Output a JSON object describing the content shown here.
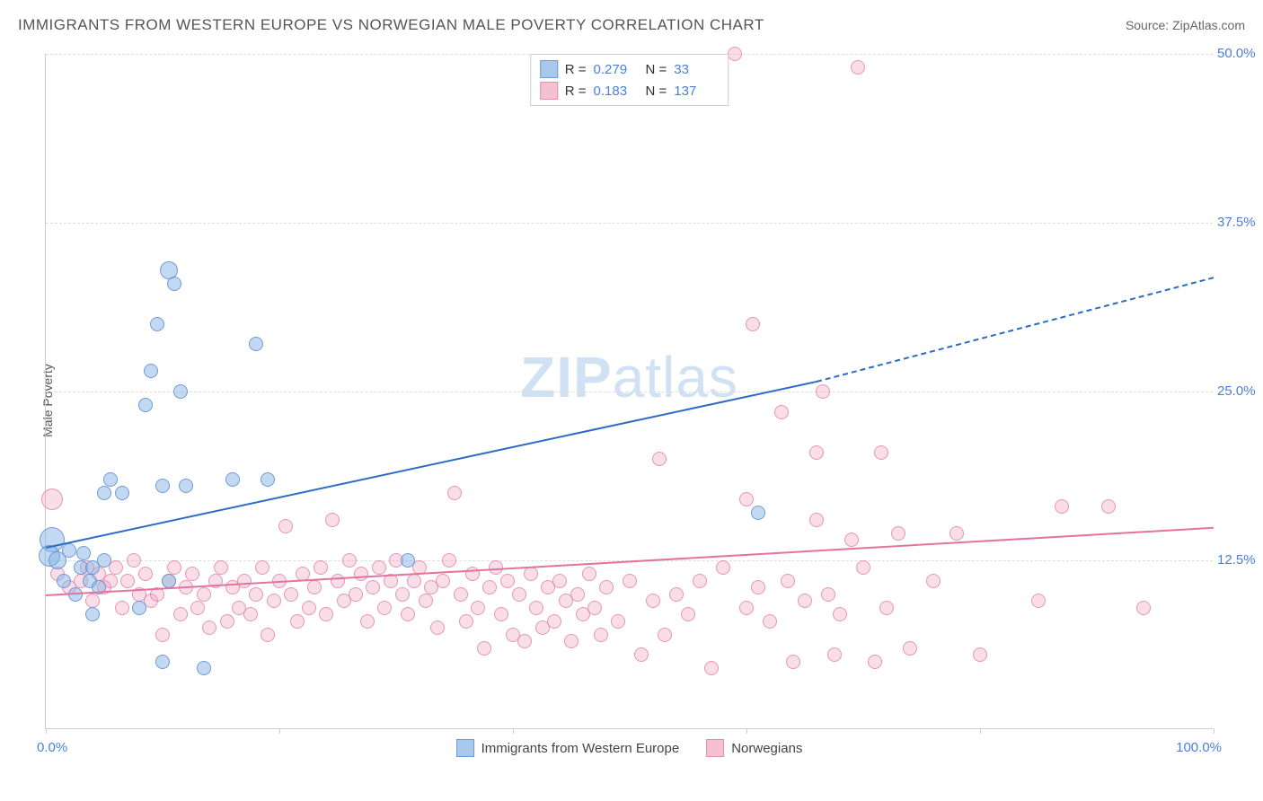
{
  "title": "IMMIGRANTS FROM WESTERN EUROPE VS NORWEGIAN MALE POVERTY CORRELATION CHART",
  "source": "Source: ZipAtlas.com",
  "watermark_bold": "ZIP",
  "watermark_light": "atlas",
  "ylabel": "Male Poverty",
  "chart": {
    "type": "scatter",
    "xlim": [
      0,
      100
    ],
    "ylim": [
      0,
      50
    ],
    "xmin_label": "0.0%",
    "xmax_label": "100.0%",
    "xtick_positions": [
      0,
      20,
      40,
      60,
      80,
      100
    ],
    "yticks": [
      {
        "v": 12.5,
        "label": "12.5%"
      },
      {
        "v": 25.0,
        "label": "25.0%"
      },
      {
        "v": 37.5,
        "label": "37.5%"
      },
      {
        "v": 50.0,
        "label": "50.0%"
      }
    ],
    "grid_color": "#dddddd",
    "axis_color": "#cccccc",
    "background_color": "#ffffff",
    "series": [
      {
        "name": "Immigrants from Western Europe",
        "color_fill": "rgba(135,180,230,0.5)",
        "color_stroke": "#5a8cd2",
        "swatch_fill": "#a8c8ec",
        "swatch_border": "#6b9bd8",
        "marker_radius": 8,
        "R": "0.279",
        "N": "33",
        "trend": {
          "x1": 0,
          "y1": 13.5,
          "x2_solid": 66,
          "y2_solid": 25.8,
          "x2": 100,
          "y2": 33.5,
          "color": "#2d6bc4",
          "width": 2
        },
        "points": [
          {
            "x": 0.5,
            "y": 14.0,
            "r": 14
          },
          {
            "x": 0.3,
            "y": 12.8,
            "r": 12
          },
          {
            "x": 1.0,
            "y": 12.5,
            "r": 10
          },
          {
            "x": 1.5,
            "y": 11.0,
            "r": 8
          },
          {
            "x": 2.0,
            "y": 13.2,
            "r": 8
          },
          {
            "x": 2.5,
            "y": 10.0,
            "r": 8
          },
          {
            "x": 3.0,
            "y": 12.0,
            "r": 8
          },
          {
            "x": 3.2,
            "y": 13.0,
            "r": 8
          },
          {
            "x": 3.8,
            "y": 11.0,
            "r": 8
          },
          {
            "x": 4.0,
            "y": 8.5,
            "r": 8
          },
          {
            "x": 4.0,
            "y": 12.0,
            "r": 8
          },
          {
            "x": 4.5,
            "y": 10.5,
            "r": 8
          },
          {
            "x": 5.0,
            "y": 12.5,
            "r": 8
          },
          {
            "x": 5.0,
            "y": 17.5,
            "r": 8
          },
          {
            "x": 5.5,
            "y": 18.5,
            "r": 8
          },
          {
            "x": 6.5,
            "y": 17.5,
            "r": 8
          },
          {
            "x": 8.0,
            "y": 9.0,
            "r": 8
          },
          {
            "x": 8.5,
            "y": 24.0,
            "r": 8
          },
          {
            "x": 9.0,
            "y": 26.5,
            "r": 8
          },
          {
            "x": 9.5,
            "y": 30.0,
            "r": 8
          },
          {
            "x": 10.0,
            "y": 5.0,
            "r": 8
          },
          {
            "x": 10.0,
            "y": 18.0,
            "r": 8
          },
          {
            "x": 10.5,
            "y": 11.0,
            "r": 8
          },
          {
            "x": 10.5,
            "y": 34.0,
            "r": 10
          },
          {
            "x": 11.0,
            "y": 33.0,
            "r": 8
          },
          {
            "x": 11.5,
            "y": 25.0,
            "r": 8
          },
          {
            "x": 12.0,
            "y": 18.0,
            "r": 8
          },
          {
            "x": 13.5,
            "y": 4.5,
            "r": 8
          },
          {
            "x": 16.0,
            "y": 18.5,
            "r": 8
          },
          {
            "x": 18.0,
            "y": 28.5,
            "r": 8
          },
          {
            "x": 19.0,
            "y": 18.5,
            "r": 8
          },
          {
            "x": 31.0,
            "y": 12.5,
            "r": 8
          },
          {
            "x": 61.0,
            "y": 16.0,
            "r": 8
          }
        ]
      },
      {
        "name": "Norwegians",
        "color_fill": "rgba(240,160,185,0.35)",
        "color_stroke": "#dc78a0",
        "swatch_fill": "#f5c0d2",
        "swatch_border": "#e28fb0",
        "marker_radius": 8,
        "R": "0.183",
        "N": "137",
        "trend": {
          "x1": 0,
          "y1": 10.0,
          "x2_solid": 100,
          "y2_solid": 15.0,
          "x2": 100,
          "y2": 15.0,
          "color": "#e472a0",
          "width": 2
        },
        "points": [
          {
            "x": 0.5,
            "y": 17.0,
            "r": 12
          },
          {
            "x": 1.0,
            "y": 11.5,
            "r": 8
          },
          {
            "x": 2.0,
            "y": 10.5,
            "r": 8
          },
          {
            "x": 3.0,
            "y": 11.0,
            "r": 8
          },
          {
            "x": 3.5,
            "y": 12.0,
            "r": 8
          },
          {
            "x": 4.0,
            "y": 9.5,
            "r": 8
          },
          {
            "x": 4.5,
            "y": 11.5,
            "r": 8
          },
          {
            "x": 5.0,
            "y": 10.5,
            "r": 8
          },
          {
            "x": 5.5,
            "y": 11.0,
            "r": 8
          },
          {
            "x": 6.0,
            "y": 12.0,
            "r": 8
          },
          {
            "x": 6.5,
            "y": 9.0,
            "r": 8
          },
          {
            "x": 7.0,
            "y": 11.0,
            "r": 8
          },
          {
            "x": 7.5,
            "y": 12.5,
            "r": 8
          },
          {
            "x": 8.0,
            "y": 10.0,
            "r": 8
          },
          {
            "x": 8.5,
            "y": 11.5,
            "r": 8
          },
          {
            "x": 9.0,
            "y": 9.5,
            "r": 8
          },
          {
            "x": 9.5,
            "y": 10.0,
            "r": 8
          },
          {
            "x": 10.0,
            "y": 7.0,
            "r": 8
          },
          {
            "x": 10.5,
            "y": 11.0,
            "r": 8
          },
          {
            "x": 11.0,
            "y": 12.0,
            "r": 8
          },
          {
            "x": 11.5,
            "y": 8.5,
            "r": 8
          },
          {
            "x": 12.0,
            "y": 10.5,
            "r": 8
          },
          {
            "x": 12.5,
            "y": 11.5,
            "r": 8
          },
          {
            "x": 13.0,
            "y": 9.0,
            "r": 8
          },
          {
            "x": 13.5,
            "y": 10.0,
            "r": 8
          },
          {
            "x": 14.0,
            "y": 7.5,
            "r": 8
          },
          {
            "x": 14.5,
            "y": 11.0,
            "r": 8
          },
          {
            "x": 15.0,
            "y": 12.0,
            "r": 8
          },
          {
            "x": 15.5,
            "y": 8.0,
            "r": 8
          },
          {
            "x": 16.0,
            "y": 10.5,
            "r": 8
          },
          {
            "x": 16.5,
            "y": 9.0,
            "r": 8
          },
          {
            "x": 17.0,
            "y": 11.0,
            "r": 8
          },
          {
            "x": 17.5,
            "y": 8.5,
            "r": 8
          },
          {
            "x": 18.0,
            "y": 10.0,
            "r": 8
          },
          {
            "x": 18.5,
            "y": 12.0,
            "r": 8
          },
          {
            "x": 19.0,
            "y": 7.0,
            "r": 8
          },
          {
            "x": 19.5,
            "y": 9.5,
            "r": 8
          },
          {
            "x": 20.0,
            "y": 11.0,
            "r": 8
          },
          {
            "x": 20.5,
            "y": 15.0,
            "r": 8
          },
          {
            "x": 21.0,
            "y": 10.0,
            "r": 8
          },
          {
            "x": 21.5,
            "y": 8.0,
            "r": 8
          },
          {
            "x": 22.0,
            "y": 11.5,
            "r": 8
          },
          {
            "x": 22.5,
            "y": 9.0,
            "r": 8
          },
          {
            "x": 23.0,
            "y": 10.5,
            "r": 8
          },
          {
            "x": 23.5,
            "y": 12.0,
            "r": 8
          },
          {
            "x": 24.0,
            "y": 8.5,
            "r": 8
          },
          {
            "x": 24.5,
            "y": 15.5,
            "r": 8
          },
          {
            "x": 25.0,
            "y": 11.0,
            "r": 8
          },
          {
            "x": 25.5,
            "y": 9.5,
            "r": 8
          },
          {
            "x": 26.0,
            "y": 12.5,
            "r": 8
          },
          {
            "x": 26.5,
            "y": 10.0,
            "r": 8
          },
          {
            "x": 27.0,
            "y": 11.5,
            "r": 8
          },
          {
            "x": 27.5,
            "y": 8.0,
            "r": 8
          },
          {
            "x": 28.0,
            "y": 10.5,
            "r": 8
          },
          {
            "x": 28.5,
            "y": 12.0,
            "r": 8
          },
          {
            "x": 29.0,
            "y": 9.0,
            "r": 8
          },
          {
            "x": 29.5,
            "y": 11.0,
            "r": 8
          },
          {
            "x": 30.0,
            "y": 12.5,
            "r": 8
          },
          {
            "x": 30.5,
            "y": 10.0,
            "r": 8
          },
          {
            "x": 31.0,
            "y": 8.5,
            "r": 8
          },
          {
            "x": 31.5,
            "y": 11.0,
            "r": 8
          },
          {
            "x": 32.0,
            "y": 12.0,
            "r": 8
          },
          {
            "x": 32.5,
            "y": 9.5,
            "r": 8
          },
          {
            "x": 33.0,
            "y": 10.5,
            "r": 8
          },
          {
            "x": 33.5,
            "y": 7.5,
            "r": 8
          },
          {
            "x": 34.0,
            "y": 11.0,
            "r": 8
          },
          {
            "x": 34.5,
            "y": 12.5,
            "r": 8
          },
          {
            "x": 35.0,
            "y": 17.5,
            "r": 8
          },
          {
            "x": 35.5,
            "y": 10.0,
            "r": 8
          },
          {
            "x": 36.0,
            "y": 8.0,
            "r": 8
          },
          {
            "x": 36.5,
            "y": 11.5,
            "r": 8
          },
          {
            "x": 37.0,
            "y": 9.0,
            "r": 8
          },
          {
            "x": 37.5,
            "y": 6.0,
            "r": 8
          },
          {
            "x": 38.0,
            "y": 10.5,
            "r": 8
          },
          {
            "x": 38.5,
            "y": 12.0,
            "r": 8
          },
          {
            "x": 39.0,
            "y": 8.5,
            "r": 8
          },
          {
            "x": 39.5,
            "y": 11.0,
            "r": 8
          },
          {
            "x": 40.0,
            "y": 7.0,
            "r": 8
          },
          {
            "x": 40.5,
            "y": 10.0,
            "r": 8
          },
          {
            "x": 41.0,
            "y": 6.5,
            "r": 8
          },
          {
            "x": 41.5,
            "y": 11.5,
            "r": 8
          },
          {
            "x": 42.0,
            "y": 9.0,
            "r": 8
          },
          {
            "x": 42.5,
            "y": 7.5,
            "r": 8
          },
          {
            "x": 43.0,
            "y": 10.5,
            "r": 8
          },
          {
            "x": 43.5,
            "y": 8.0,
            "r": 8
          },
          {
            "x": 44.0,
            "y": 11.0,
            "r": 8
          },
          {
            "x": 44.5,
            "y": 9.5,
            "r": 8
          },
          {
            "x": 45.0,
            "y": 6.5,
            "r": 8
          },
          {
            "x": 45.5,
            "y": 10.0,
            "r": 8
          },
          {
            "x": 46.0,
            "y": 8.5,
            "r": 8
          },
          {
            "x": 46.5,
            "y": 11.5,
            "r": 8
          },
          {
            "x": 47.0,
            "y": 9.0,
            "r": 8
          },
          {
            "x": 47.5,
            "y": 7.0,
            "r": 8
          },
          {
            "x": 48.0,
            "y": 10.5,
            "r": 8
          },
          {
            "x": 49.0,
            "y": 8.0,
            "r": 8
          },
          {
            "x": 50.0,
            "y": 11.0,
            "r": 8
          },
          {
            "x": 51.0,
            "y": 5.5,
            "r": 8
          },
          {
            "x": 52.0,
            "y": 9.5,
            "r": 8
          },
          {
            "x": 52.5,
            "y": 20.0,
            "r": 8
          },
          {
            "x": 53.0,
            "y": 7.0,
            "r": 8
          },
          {
            "x": 54.0,
            "y": 10.0,
            "r": 8
          },
          {
            "x": 55.0,
            "y": 8.5,
            "r": 8
          },
          {
            "x": 56.0,
            "y": 11.0,
            "r": 8
          },
          {
            "x": 57.0,
            "y": 4.5,
            "r": 8
          },
          {
            "x": 58.0,
            "y": 12.0,
            "r": 8
          },
          {
            "x": 59.0,
            "y": 51.0,
            "r": 8
          },
          {
            "x": 60.0,
            "y": 9.0,
            "r": 8
          },
          {
            "x": 60.0,
            "y": 17.0,
            "r": 8
          },
          {
            "x": 60.5,
            "y": 30.0,
            "r": 8
          },
          {
            "x": 61.0,
            "y": 10.5,
            "r": 8
          },
          {
            "x": 62.0,
            "y": 8.0,
            "r": 8
          },
          {
            "x": 63.0,
            "y": 23.5,
            "r": 8
          },
          {
            "x": 63.5,
            "y": 11.0,
            "r": 8
          },
          {
            "x": 64.0,
            "y": 5.0,
            "r": 8
          },
          {
            "x": 65.0,
            "y": 9.5,
            "r": 8
          },
          {
            "x": 66.0,
            "y": 15.5,
            "r": 8
          },
          {
            "x": 66.0,
            "y": 20.5,
            "r": 8
          },
          {
            "x": 66.5,
            "y": 25.0,
            "r": 8
          },
          {
            "x": 67.0,
            "y": 10.0,
            "r": 8
          },
          {
            "x": 67.5,
            "y": 5.5,
            "r": 8
          },
          {
            "x": 68.0,
            "y": 8.5,
            "r": 8
          },
          {
            "x": 69.0,
            "y": 14.0,
            "r": 8
          },
          {
            "x": 69.5,
            "y": 49.0,
            "r": 8
          },
          {
            "x": 70.0,
            "y": 12.0,
            "r": 8
          },
          {
            "x": 71.0,
            "y": 5.0,
            "r": 8
          },
          {
            "x": 71.5,
            "y": 20.5,
            "r": 8
          },
          {
            "x": 72.0,
            "y": 9.0,
            "r": 8
          },
          {
            "x": 73.0,
            "y": 14.5,
            "r": 8
          },
          {
            "x": 74.0,
            "y": 6.0,
            "r": 8
          },
          {
            "x": 76.0,
            "y": 11.0,
            "r": 8
          },
          {
            "x": 78.0,
            "y": 14.5,
            "r": 8
          },
          {
            "x": 80.0,
            "y": 5.5,
            "r": 8
          },
          {
            "x": 85.0,
            "y": 9.5,
            "r": 8
          },
          {
            "x": 87.0,
            "y": 16.5,
            "r": 8
          },
          {
            "x": 91.0,
            "y": 16.5,
            "r": 8
          },
          {
            "x": 94.0,
            "y": 9.0,
            "r": 8
          }
        ]
      }
    ]
  },
  "legend_bottom": [
    {
      "label": "Immigrants from Western Europe",
      "swatch_fill": "#a8c8ec",
      "swatch_border": "#6b9bd8"
    },
    {
      "label": "Norwegians",
      "swatch_fill": "#f5c0d2",
      "swatch_border": "#e28fb0"
    }
  ]
}
